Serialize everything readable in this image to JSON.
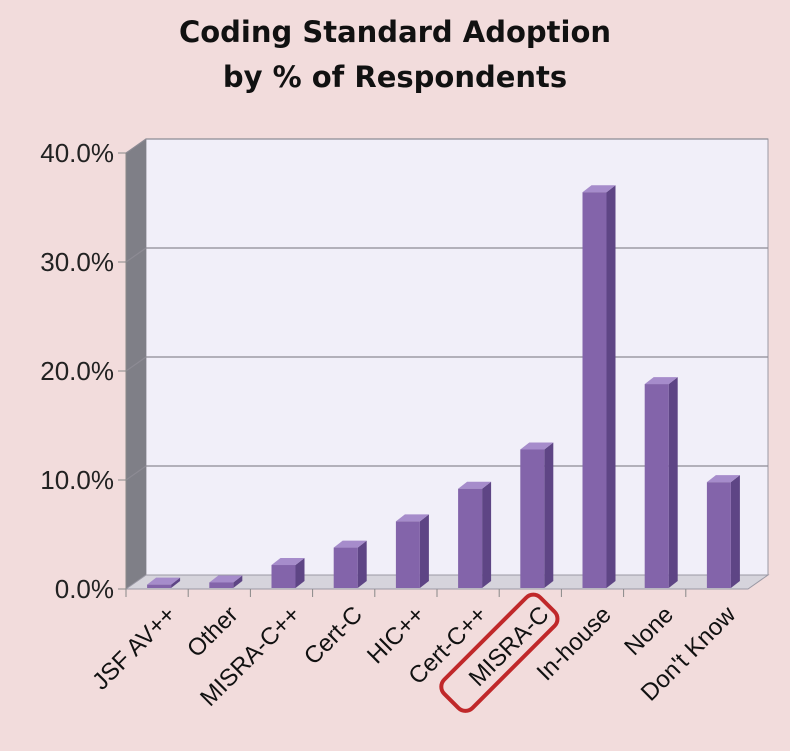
{
  "chart_data": {
    "type": "bar",
    "title": [
      "Coding Standard Adoption",
      "by % of Respondents"
    ],
    "xlabel": "",
    "ylabel": "",
    "categories": [
      "JSF AV++",
      "Other",
      "MISRA-C++",
      "Cert-C",
      "HIC++",
      "Cert-C++",
      "MISRA-C",
      "In-house",
      "None",
      "Don't Know"
    ],
    "values": [
      0.4,
      0.6,
      2.2,
      3.8,
      6.2,
      9.2,
      12.8,
      36.4,
      18.8,
      9.8
    ],
    "ylim": [
      0,
      40
    ],
    "yticks": [
      "0.0%",
      "10.0%",
      "20.0%",
      "30.0%",
      "40.0%"
    ],
    "grid": true,
    "highlighted_category": "MISRA-C",
    "colors": {
      "background": "#f2dcdc",
      "plot_back": "#f1eff9",
      "plot_side": "#7f7f87",
      "floor": "#d6d4dc",
      "bar_front": "#8364aa",
      "bar_side": "#5e4585",
      "bar_top": "#a68ccb",
      "highlight": "#c0282a"
    }
  }
}
